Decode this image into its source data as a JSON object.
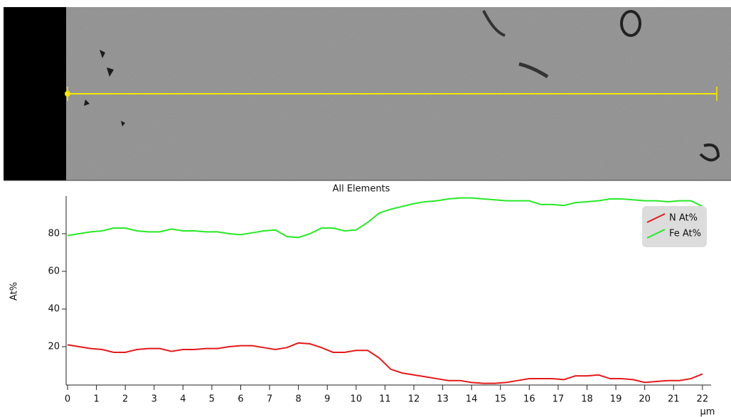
{
  "chart_data": {
    "type": "line",
    "title": "All Elements",
    "y_label": "At%",
    "x_label": "μm",
    "x": [
      0,
      0.4,
      0.8,
      1.2,
      1.6,
      2.0,
      2.4,
      2.8,
      3.2,
      3.6,
      4.0,
      4.4,
      4.8,
      5.2,
      5.6,
      6.0,
      6.4,
      6.8,
      7.2,
      7.6,
      8.0,
      8.4,
      8.8,
      9.2,
      9.6,
      10.0,
      10.4,
      10.8,
      11.2,
      11.6,
      12.0,
      12.4,
      12.8,
      13.2,
      13.6,
      14.0,
      14.4,
      14.8,
      15.2,
      15.6,
      16.0,
      16.4,
      16.8,
      17.2,
      17.6,
      18.0,
      18.4,
      18.8,
      19.2,
      19.6,
      20.0,
      20.4,
      20.8,
      21.2,
      21.6,
      22.0
    ],
    "series": [
      {
        "name": "N At%",
        "color": "#e31a1a",
        "values": [
          21,
          20,
          19,
          18.5,
          17,
          17,
          18.5,
          19,
          19,
          17.5,
          18.5,
          18.5,
          19,
          19,
          20,
          20.5,
          20.5,
          19.5,
          18.5,
          19.5,
          22,
          21.5,
          19.5,
          17,
          17,
          18,
          18,
          14,
          8,
          6,
          5,
          4,
          3,
          2,
          2,
          1,
          0.5,
          0.5,
          1,
          2,
          3,
          3,
          3,
          2.5,
          4.5,
          4.5,
          5,
          3,
          3,
          2.5,
          1,
          1.5,
          2,
          2,
          3,
          5.5
        ]
      },
      {
        "name": "Fe At%",
        "color": "#27e827",
        "values": [
          79,
          80,
          81,
          81.5,
          83,
          83,
          81.5,
          81,
          81,
          82.5,
          81.5,
          81.5,
          81,
          81,
          80,
          79.5,
          80.5,
          81.5,
          82,
          78.5,
          78,
          80,
          83,
          83,
          81.5,
          82,
          86,
          91,
          93,
          94.5,
          96,
          97,
          97.5,
          98.5,
          99,
          99,
          98.5,
          98,
          97.5,
          97.5,
          97.5,
          95.5,
          95.5,
          95,
          96.5,
          97,
          97.5,
          98.5,
          98.5,
          98,
          97.5,
          97.5,
          97,
          97.5,
          97.5,
          94.5
        ]
      }
    ],
    "xlim": [
      0,
      22.3
    ],
    "xticks": [
      0,
      1,
      2,
      3,
      4,
      5,
      6,
      7,
      8,
      9,
      10,
      11,
      12,
      13,
      14,
      15,
      16,
      17,
      18,
      19,
      20,
      21,
      22
    ],
    "ylim": [
      0,
      100
    ],
    "yticks": [
      20,
      40,
      60,
      80
    ],
    "legend": "upper right"
  }
}
